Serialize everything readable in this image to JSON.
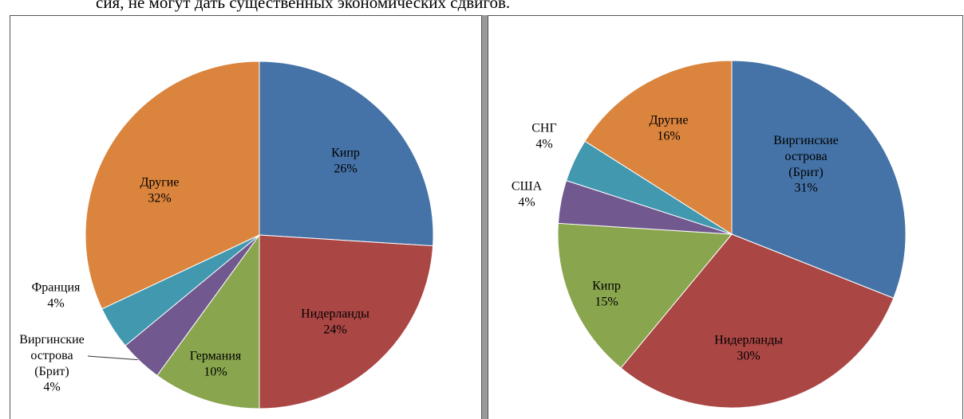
{
  "header_text": "сия, не могут дать существенных экономических сдвигов.",
  "chart_data": [
    {
      "type": "pie",
      "categories": [
        "Кипр",
        "Нидерланды",
        "Германия",
        "Виргинские острова (Брит)",
        "Франция",
        "Другие"
      ],
      "values": [
        26,
        24,
        10,
        4,
        4,
        32
      ],
      "value_labels": [
        "26%",
        "24%",
        "10%",
        "4%",
        "4%",
        "32%"
      ],
      "colors": [
        "#4573a7",
        "#aa4644",
        "#89a54e",
        "#71588f",
        "#4198af",
        "#db843d"
      ]
    },
    {
      "type": "pie",
      "categories": [
        "Виргинские острова (Брит)",
        "Нидерланды",
        "Кипр",
        "США",
        "СНГ",
        "Другие"
      ],
      "values": [
        31,
        30,
        15,
        4,
        4,
        16
      ],
      "value_labels": [
        "31%",
        "30%",
        "15%",
        "4%",
        "4%",
        "16%"
      ],
      "colors": [
        "#4573a7",
        "#aa4644",
        "#89a54e",
        "#71588f",
        "#4198af",
        "#db843d"
      ]
    }
  ]
}
